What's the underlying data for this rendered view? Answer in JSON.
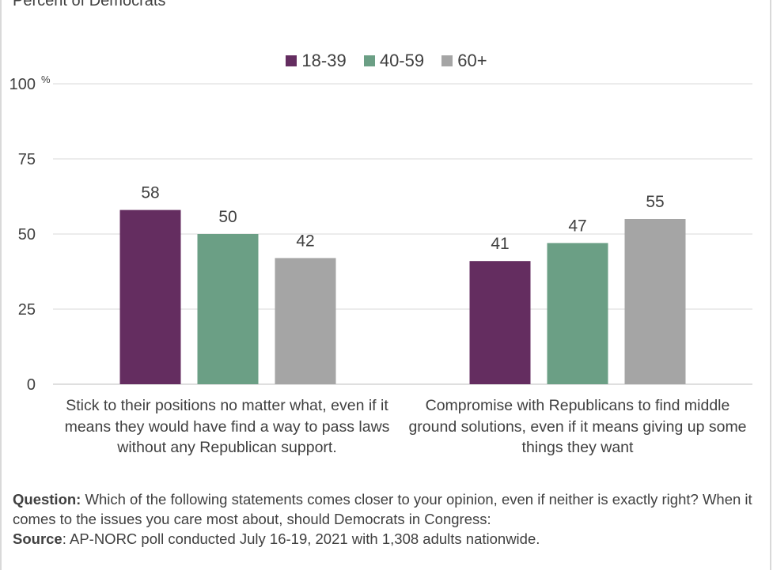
{
  "subtitle": "Percent of Democrats",
  "chart_data": {
    "type": "bar",
    "categories": [
      "Stick to their positions no matter what, even if it means they would have find a way to pass laws without any Republican support.",
      "Compromise with Republicans to find middle ground solutions, even if it means giving up some things they want"
    ],
    "series": [
      {
        "name": "18-39",
        "color": "#642d60",
        "values": [
          58,
          41
        ]
      },
      {
        "name": "40-59",
        "color": "#6b9f85",
        "values": [
          50,
          47
        ]
      },
      {
        "name": "60+",
        "color": "#a5a5a5",
        "values": [
          42,
          55
        ]
      }
    ],
    "ylim": [
      0,
      100
    ],
    "yticks": [
      "0",
      "25",
      "50",
      "75",
      "100"
    ],
    "y_unit_label": "%",
    "grid": true,
    "legend_position": "top-center"
  },
  "notes": {
    "question_label": "Question:",
    "question_text": " Which of the following statements comes closer to your opinion, even if neither is exactly right? When it comes to the issues you care most about, should Democrats in Congress:",
    "source_label": "Source",
    "source_text": ": AP-NORC poll conducted July 16-19, 2021 with 1,308 adults nationwide."
  }
}
